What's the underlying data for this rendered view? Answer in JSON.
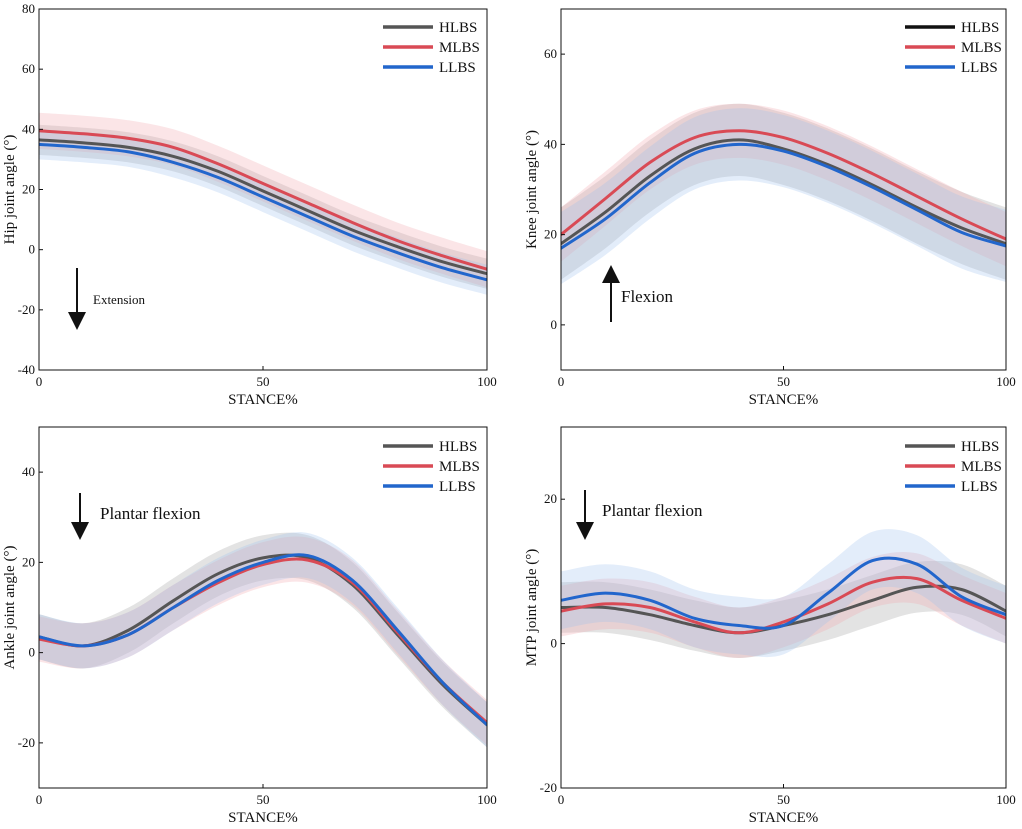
{
  "colors": {
    "HLBS": "#555555",
    "MLBS": "#d94a55",
    "LLBS": "#2266cc",
    "HLBS_legend_knee": "#111111",
    "HLBS_band": "#9a9a9a",
    "MLBS_band": "#f2a0a8",
    "LLBS_band": "#9cc0ee"
  },
  "chart_data": [
    {
      "id": "hip",
      "type": "line",
      "ylabel": "Hip joint angle (°)",
      "xlabel": "STANCE%",
      "xlim": [
        0,
        100
      ],
      "ylim": [
        -40,
        80
      ],
      "xticks": [
        "0",
        "50",
        "100"
      ],
      "yticks": [
        "80",
        "60",
        "40",
        "20",
        "0",
        "-20",
        "-40"
      ],
      "legend": [
        "HLBS",
        "MLBS",
        "LLBS"
      ],
      "legend_position": "top-right",
      "annotation": {
        "text": "Extension",
        "direction": "down"
      },
      "x": [
        0,
        10,
        20,
        30,
        40,
        50,
        60,
        70,
        80,
        90,
        100
      ],
      "series": [
        {
          "name": "HLBS",
          "values": [
            36.5,
            35.5,
            34,
            31,
            26,
            19.5,
            13,
            6.5,
            1,
            -4,
            -8
          ],
          "sd": 5
        },
        {
          "name": "MLBS",
          "values": [
            39.5,
            38.5,
            37,
            34,
            28.5,
            22,
            15.5,
            9,
            3,
            -2,
            -6.5
          ],
          "sd": 6
        },
        {
          "name": "LLBS",
          "values": [
            35,
            34,
            32.5,
            29,
            24,
            17.5,
            11,
            4.5,
            -1,
            -6,
            -10
          ],
          "sd": 5
        }
      ]
    },
    {
      "id": "knee",
      "type": "line",
      "ylabel": "Knee joint angle (°)",
      "xlabel": "STANCE%",
      "xlim": [
        0,
        100
      ],
      "ylim": [
        -10,
        70
      ],
      "xticks": [
        "0",
        "50",
        "100"
      ],
      "yticks": [
        "60",
        "40",
        "20",
        "0"
      ],
      "legend": [
        "HLBS",
        "MLBS",
        "LLBS"
      ],
      "legend_position": "top-right",
      "annotation": {
        "text": "Flexion",
        "direction": "up"
      },
      "x": [
        0,
        10,
        20,
        30,
        40,
        50,
        60,
        70,
        80,
        90,
        100
      ],
      "series": [
        {
          "name": "HLBS",
          "values": [
            18,
            25,
            33,
            39,
            41,
            39,
            35.5,
            31,
            26,
            21.5,
            18
          ],
          "sd": 8
        },
        {
          "name": "MLBS",
          "values": [
            20,
            28,
            36,
            41.5,
            43,
            41.5,
            38,
            33.5,
            28.5,
            23.5,
            19
          ],
          "sd": 6
        },
        {
          "name": "LLBS",
          "values": [
            17,
            23.5,
            31.5,
            38,
            40,
            38.5,
            35,
            30.5,
            25.5,
            20.5,
            17.5
          ],
          "sd": 8
        }
      ]
    },
    {
      "id": "ankle",
      "type": "line",
      "ylabel": "Ankle joint angle (°)",
      "xlabel": "STANCE%",
      "xlim": [
        0,
        100
      ],
      "ylim": [
        -30,
        50
      ],
      "xticks": [
        "0",
        "50",
        "100"
      ],
      "yticks": [
        "40",
        "20",
        "0",
        "-20"
      ],
      "legend": [
        "HLBS",
        "MLBS",
        "LLBS"
      ],
      "legend_position": "top-right",
      "annotation": {
        "text": "Plantar flexion",
        "direction": "down"
      },
      "x": [
        0,
        10,
        20,
        30,
        40,
        50,
        60,
        70,
        80,
        90,
        100
      ],
      "series": [
        {
          "name": "HLBS",
          "values": [
            3.5,
            1.5,
            5,
            11.5,
            17.5,
            21,
            21,
            15,
            4,
            -7,
            -16
          ],
          "sd": 5
        },
        {
          "name": "MLBS",
          "values": [
            3,
            1.5,
            4,
            10,
            15.5,
            19.5,
            20.5,
            15.5,
            4.5,
            -6.5,
            -15.5
          ],
          "sd": 5
        },
        {
          "name": "LLBS",
          "values": [
            3.5,
            1.5,
            4,
            10,
            16,
            20,
            21.5,
            16,
            5,
            -6.5,
            -16
          ],
          "sd": 5
        }
      ]
    },
    {
      "id": "mtp",
      "type": "line",
      "ylabel": "MTP joint angle (°)",
      "xlabel": "STANCE%",
      "xlim": [
        0,
        100
      ],
      "ylim": [
        -20,
        30
      ],
      "xticks": [
        "0",
        "50",
        "100"
      ],
      "yticks": [
        "20",
        "0",
        "-20"
      ],
      "legend": [
        "HLBS",
        "MLBS",
        "LLBS"
      ],
      "legend_position": "top-right",
      "annotation": {
        "text": "Plantar flexion",
        "direction": "down"
      },
      "x": [
        0,
        10,
        20,
        30,
        40,
        50,
        60,
        70,
        80,
        90,
        100
      ],
      "series": [
        {
          "name": "HLBS",
          "values": [
            5,
            5,
            4,
            2.5,
            1.5,
            2.5,
            4,
            6,
            7.8,
            7.5,
            4.5
          ],
          "sd": 3.5
        },
        {
          "name": "MLBS",
          "values": [
            4.5,
            5.5,
            5,
            3,
            1.5,
            3,
            5.5,
            8.5,
            9,
            6,
            3.5
          ],
          "sd": 3.5
        },
        {
          "name": "LLBS",
          "values": [
            6,
            7,
            6,
            3.5,
            2.5,
            2.5,
            7,
            11.5,
            11,
            6.5,
            4
          ],
          "sd": 4
        }
      ]
    }
  ]
}
